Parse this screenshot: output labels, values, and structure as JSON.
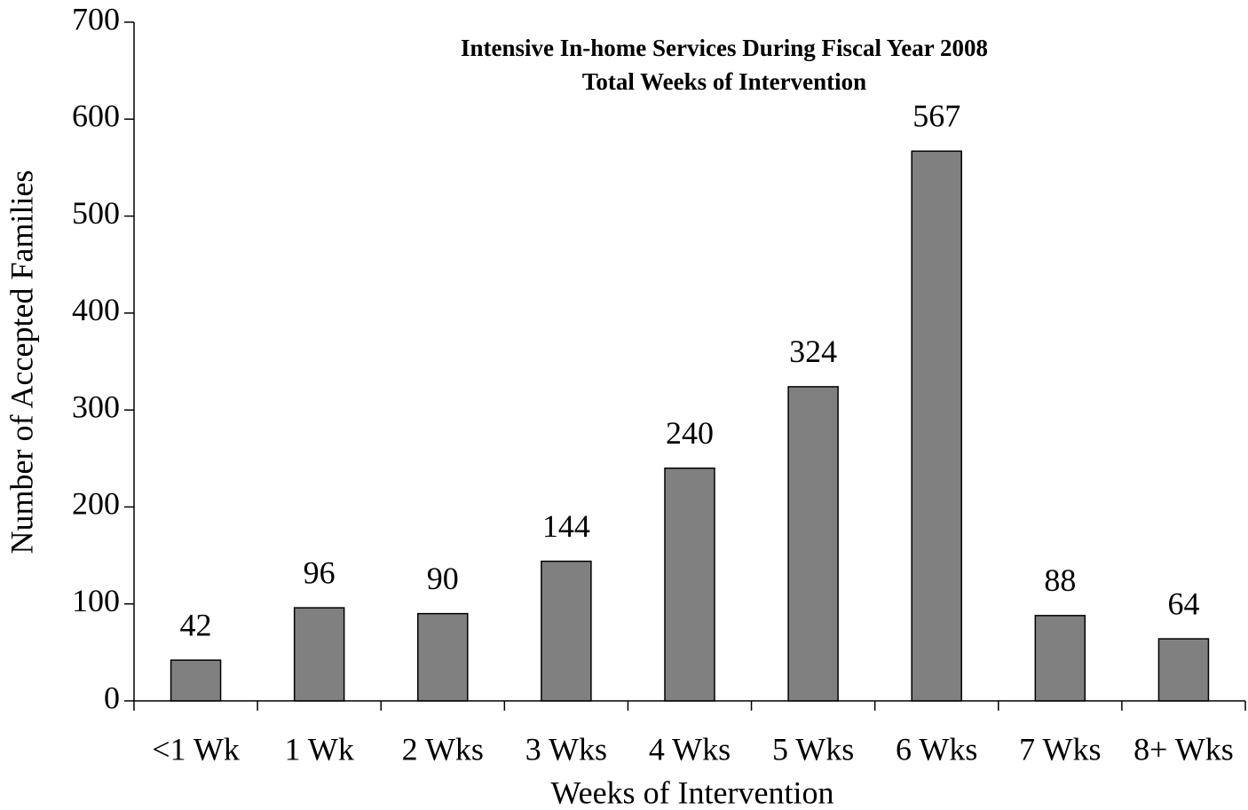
{
  "chart_data": {
    "type": "bar",
    "title": "Intensive In-home Services During Fiscal Year 2008",
    "subtitle": "Total Weeks of Intervention",
    "x_label": "Weeks of Intervention",
    "y_label": "Number of Accepted Families",
    "categories": [
      "<1 Wk",
      "1 Wk",
      "2 Wks",
      "3 Wks",
      "4 Wks",
      "5 Wks",
      "6 Wks",
      "7 Wks",
      "8+ Wks"
    ],
    "values": [
      42,
      96,
      90,
      144,
      240,
      324,
      567,
      88,
      64
    ],
    "color": "#808080",
    "ylim": [
      0,
      700
    ],
    "yticks": [
      0,
      100,
      200,
      300,
      400,
      500,
      600,
      700
    ],
    "grid": false
  }
}
